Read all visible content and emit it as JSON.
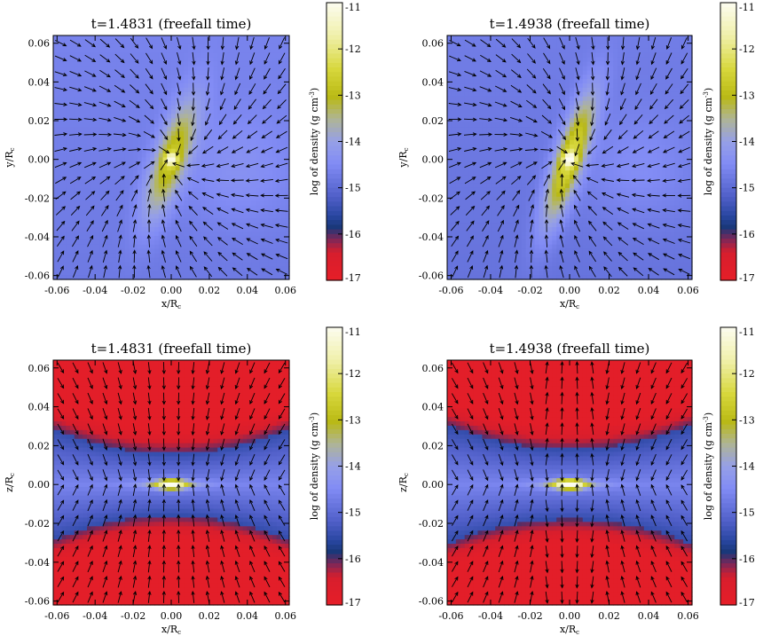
{
  "chart_data": [
    {
      "type": "heatmap",
      "title": "t=1.4831 (freefall time)",
      "xlabel": "x/R",
      "xlabel_subscript": "c",
      "ylabel": "y/R",
      "ylabel_subscript": "c",
      "xlim": [
        -0.062,
        0.062
      ],
      "ylim": [
        -0.062,
        0.064
      ],
      "ticks": [
        "-0.06",
        "-0.04",
        "-0.02",
        "0.00",
        "0.02",
        "0.04",
        "0.06"
      ],
      "colorbar": {
        "label": "log of density (g cm",
        "label_sup": "-3",
        "label_end": ")",
        "ticks": [
          "-11",
          "-12",
          "-13",
          "-14",
          "-15",
          "-16",
          "-17"
        ],
        "range": [
          -17,
          -11
        ]
      },
      "field": {
        "plane": "xy",
        "background": -14.7,
        "peak": -11.6,
        "blob_tilt_deg": 20,
        "blob_length": 0.022,
        "blob_width": 0.006
      },
      "arrows": "inflow toward center with clockwise swirl"
    },
    {
      "type": "heatmap",
      "title": "t=1.4938 (freefall time)",
      "xlabel": "x/R",
      "xlabel_subscript": "c",
      "ylabel": "y/R",
      "ylabel_subscript": "c",
      "xlim": [
        -0.062,
        0.062
      ],
      "ylim": [
        -0.062,
        0.064
      ],
      "ticks": [
        "-0.06",
        "-0.04",
        "-0.02",
        "0.00",
        "0.02",
        "0.04",
        "0.06"
      ],
      "colorbar": {
        "label": "log of density (g cm",
        "label_sup": "-3",
        "label_end": ")",
        "ticks": [
          "-11",
          "-12",
          "-13",
          "-14",
          "-15",
          "-16",
          "-17"
        ],
        "range": [
          -17,
          -11
        ]
      },
      "field": {
        "plane": "xy",
        "background": -14.8,
        "peak": -11.2,
        "blob_tilt_deg": 18,
        "blob_length": 0.024,
        "blob_width": 0.005
      },
      "arrows": "inflow toward center with clockwise swirl"
    },
    {
      "type": "heatmap",
      "title": "t=1.4831 (freefall time)",
      "xlabel": "x/R",
      "xlabel_subscript": "c",
      "ylabel": "z/R",
      "ylabel_subscript": "c",
      "xlim": [
        -0.062,
        0.062
      ],
      "ylim": [
        -0.062,
        0.064
      ],
      "ticks": [
        "-0.06",
        "-0.04",
        "-0.02",
        "0.00",
        "0.02",
        "0.04",
        "0.06"
      ],
      "colorbar": {
        "label": "log of density (g cm",
        "label_sup": "-3",
        "label_end": ")",
        "ticks": [
          "-11",
          "-12",
          "-13",
          "-14",
          "-15",
          "-16",
          "-17"
        ],
        "range": [
          -17,
          -11
        ]
      },
      "field": {
        "plane": "xz",
        "disk_half_thickness_center": 0.016,
        "disk_half_thickness_edge": 0.028,
        "peak": -11.5
      },
      "arrows": "vertical infall onto midplane"
    },
    {
      "type": "heatmap",
      "title": "t=1.4938 (freefall time)",
      "xlabel": "x/R",
      "xlabel_subscript": "c",
      "ylabel": "z/R",
      "ylabel_subscript": "c",
      "xlim": [
        -0.062,
        0.062
      ],
      "ylim": [
        -0.062,
        0.064
      ],
      "ticks": [
        "-0.06",
        "-0.04",
        "-0.02",
        "0.00",
        "0.02",
        "0.04",
        "0.06"
      ],
      "colorbar": {
        "label": "log of density (g cm",
        "label_sup": "-3",
        "label_end": ")",
        "ticks": [
          "-11",
          "-12",
          "-13",
          "-14",
          "-15",
          "-16",
          "-17"
        ],
        "range": [
          -17,
          -11
        ]
      },
      "field": {
        "plane": "xz",
        "disk_half_thickness_center": 0.018,
        "disk_half_thickness_edge": 0.03,
        "peak": -11.0
      },
      "arrows": "infall onto midplane with outflow near axis"
    }
  ]
}
